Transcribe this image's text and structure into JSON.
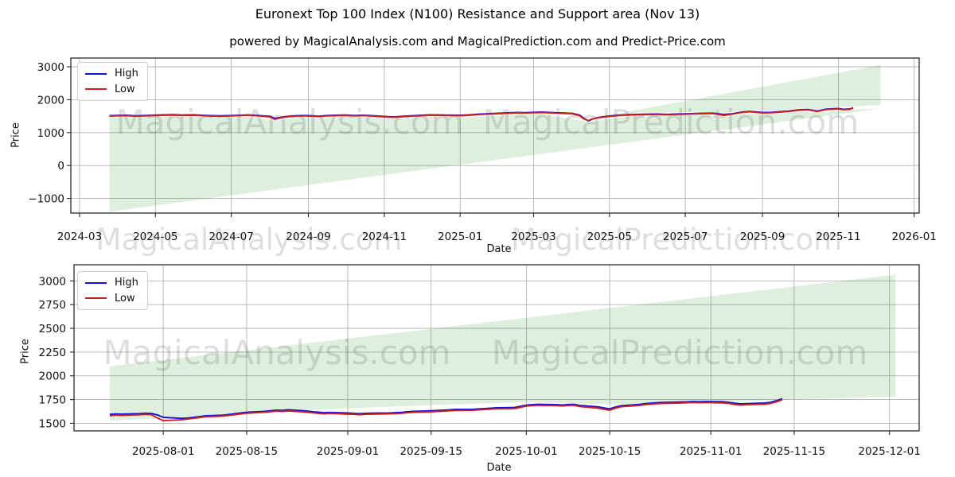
{
  "figure": {
    "title": "Euronext Top 100 Index (N100) Resistance and Support area (Nov 13)",
    "subtitle": "powered by MagicalAnalysis.com and MagicalPrediction.com and Predict-Price.com"
  },
  "watermarks": {
    "analysis": "MagicalAnalysis.com",
    "prediction": "MagicalPrediction.com"
  },
  "legend": {
    "items": [
      {
        "label": "High",
        "color_key": "high"
      },
      {
        "label": "Low",
        "color_key": "low"
      }
    ],
    "position": "upper left"
  },
  "colors": {
    "high": "#1212cf",
    "low": "#cc2020",
    "band": "rgba(0,128,0,0.13)",
    "watermark": "rgba(90,90,90,0.20)",
    "grid": "#b3b3b3",
    "spine": "#2a2a2a",
    "tick_text": "#111111"
  },
  "chart_data": [
    {
      "type": "line",
      "xlabel": "Date",
      "ylabel": "Price",
      "grid": true,
      "legend_position": "upper left",
      "xlim": [
        "2024-02-23",
        "2026-01-05"
      ],
      "ylim": [
        -1444,
        3266
      ],
      "xticks": [
        {
          "label": "2024-03",
          "date": "2024-03-01"
        },
        {
          "label": "2024-05",
          "date": "2024-05-01"
        },
        {
          "label": "2024-07",
          "date": "2024-07-01"
        },
        {
          "label": "2024-09",
          "date": "2024-09-01"
        },
        {
          "label": "2024-11",
          "date": "2024-11-01"
        },
        {
          "label": "2025-01",
          "date": "2025-01-01"
        },
        {
          "label": "2025-03",
          "date": "2025-03-01"
        },
        {
          "label": "2025-05",
          "date": "2025-05-01"
        },
        {
          "label": "2025-07",
          "date": "2025-07-01"
        },
        {
          "label": "2025-09",
          "date": "2025-09-01"
        },
        {
          "label": "2025-11",
          "date": "2025-11-01"
        },
        {
          "label": "2026-01",
          "date": "2026-01-01"
        }
      ],
      "yticks": [
        {
          "label": "3000",
          "value": 3000
        },
        {
          "label": "2000",
          "value": 2000
        },
        {
          "label": "1000",
          "value": 1000
        },
        {
          "label": "0",
          "value": 0
        },
        {
          "label": "−1000",
          "value": -1000
        }
      ],
      "watermarks_in_plot": [
        "analysis",
        "prediction"
      ],
      "watermarks_below_axis": [
        "analysis",
        "prediction"
      ],
      "bands": [
        [
          [
            "2024-03-25",
            -1400
          ],
          [
            "2024-03-25",
            1455
          ],
          [
            "2024-05-15",
            1490
          ],
          [
            "2024-06-22",
            1452
          ],
          [
            "2024-07-15",
            1478
          ],
          [
            "2024-08-05",
            1360
          ],
          [
            "2024-08-26",
            1462
          ],
          [
            "2024-09-09",
            1440
          ],
          [
            "2024-10-01",
            1476
          ],
          [
            "2024-11-08",
            1420
          ],
          [
            "2024-12-08",
            1485
          ],
          [
            "2025-01-02",
            1470
          ],
          [
            "2025-03-08",
            1568
          ],
          [
            "2025-04-14",
            1322
          ],
          [
            "2025-05-15",
            1488
          ],
          [
            "2025-07-15",
            1532
          ],
          [
            "2025-08-01",
            1482
          ],
          [
            "2025-08-22",
            1590
          ],
          [
            "2025-09-08",
            1558
          ],
          [
            "2025-10-01",
            1640
          ],
          [
            "2025-10-15",
            1596
          ],
          [
            "2025-11-01",
            1675
          ],
          [
            "2025-11-13",
            1702
          ],
          [
            "2025-12-05",
            1730
          ]
        ],
        [
          [
            "2025-04-18",
            1445
          ],
          [
            "2025-05-15",
            1588
          ],
          [
            "2025-07-15",
            1630
          ],
          [
            "2025-08-01",
            1598
          ],
          [
            "2025-08-22",
            1690
          ],
          [
            "2025-09-08",
            1660
          ],
          [
            "2025-10-01",
            1738
          ],
          [
            "2025-10-15",
            1700
          ],
          [
            "2025-11-01",
            1775
          ],
          [
            "2025-11-13",
            1802
          ],
          [
            "2025-12-05",
            1835
          ],
          [
            "2025-12-05",
            3055
          ]
        ]
      ],
      "series": {
        "dates": [
          "2024-03-25",
          "2024-04-01",
          "2024-04-08",
          "2024-04-15",
          "2024-04-22",
          "2024-05-01",
          "2024-05-08",
          "2024-05-15",
          "2024-05-22",
          "2024-06-01",
          "2024-06-08",
          "2024-06-15",
          "2024-06-22",
          "2024-07-01",
          "2024-07-08",
          "2024-07-15",
          "2024-07-22",
          "2024-08-01",
          "2024-08-05",
          "2024-08-12",
          "2024-08-19",
          "2024-08-26",
          "2024-09-02",
          "2024-09-09",
          "2024-09-16",
          "2024-09-23",
          "2024-10-01",
          "2024-10-08",
          "2024-10-15",
          "2024-10-22",
          "2024-11-01",
          "2024-11-08",
          "2024-11-15",
          "2024-11-22",
          "2024-12-01",
          "2024-12-08",
          "2024-12-15",
          "2024-12-22",
          "2025-01-02",
          "2025-01-09",
          "2025-01-16",
          "2025-01-23",
          "2025-02-01",
          "2025-02-08",
          "2025-02-15",
          "2025-02-22",
          "2025-03-01",
          "2025-03-08",
          "2025-03-15",
          "2025-03-22",
          "2025-04-01",
          "2025-04-07",
          "2025-04-10",
          "2025-04-14",
          "2025-04-17",
          "2025-04-22",
          "2025-05-01",
          "2025-05-08",
          "2025-05-15",
          "2025-05-22",
          "2025-06-02",
          "2025-06-09",
          "2025-06-16",
          "2025-06-23",
          "2025-07-01",
          "2025-07-08",
          "2025-07-15",
          "2025-07-23",
          "2025-08-01",
          "2025-08-08",
          "2025-08-15",
          "2025-08-22",
          "2025-09-01",
          "2025-09-08",
          "2025-09-15",
          "2025-09-22",
          "2025-10-01",
          "2025-10-08",
          "2025-10-15",
          "2025-10-22",
          "2025-11-01",
          "2025-11-05",
          "2025-11-10",
          "2025-11-13"
        ],
        "high": [
          1514,
          1522,
          1527,
          1510,
          1520,
          1532,
          1540,
          1547,
          1534,
          1540,
          1524,
          1514,
          1510,
          1520,
          1530,
          1536,
          1522,
          1495,
          1432,
          1478,
          1507,
          1520,
          1514,
          1497,
          1520,
          1527,
          1534,
          1520,
          1530,
          1517,
          1490,
          1477,
          1492,
          1510,
          1527,
          1542,
          1536,
          1532,
          1527,
          1542,
          1560,
          1572,
          1587,
          1600,
          1612,
          1607,
          1617,
          1624,
          1610,
          1600,
          1586,
          1533,
          1448,
          1355,
          1405,
          1462,
          1504,
          1530,
          1544,
          1554,
          1560,
          1564,
          1556,
          1562,
          1570,
          1580,
          1588,
          1592,
          1552,
          1572,
          1624,
          1646,
          1612,
          1616,
          1636,
          1654,
          1696,
          1702,
          1655,
          1714,
          1732,
          1710,
          1718,
          1760
        ],
        "low": [
          1502,
          1510,
          1515,
          1498,
          1508,
          1520,
          1528,
          1535,
          1522,
          1528,
          1512,
          1502,
          1498,
          1508,
          1518,
          1524,
          1510,
          1478,
          1405,
          1465,
          1495,
          1508,
          1502,
          1485,
          1508,
          1515,
          1522,
          1508,
          1518,
          1505,
          1478,
          1465,
          1480,
          1498,
          1515,
          1530,
          1524,
          1520,
          1515,
          1530,
          1548,
          1560,
          1575,
          1588,
          1600,
          1595,
          1605,
          1612,
          1598,
          1588,
          1572,
          1515,
          1425,
          1368,
          1412,
          1452,
          1492,
          1518,
          1532,
          1542,
          1548,
          1552,
          1544,
          1550,
          1558,
          1568,
          1576,
          1580,
          1528,
          1560,
          1612,
          1634,
          1600,
          1604,
          1624,
          1642,
          1684,
          1690,
          1640,
          1702,
          1720,
          1698,
          1706,
          1748
        ]
      }
    },
    {
      "type": "line",
      "xlabel": "Date",
      "ylabel": "Price",
      "grid": true,
      "legend_position": "upper left",
      "xlim": [
        "2025-07-17",
        "2025-12-06"
      ],
      "ylim": [
        1420,
        3170
      ],
      "xticks": [
        {
          "label": "2025-08-01",
          "date": "2025-08-01"
        },
        {
          "label": "2025-08-15",
          "date": "2025-08-15"
        },
        {
          "label": "2025-09-01",
          "date": "2025-09-01"
        },
        {
          "label": "2025-09-15",
          "date": "2025-09-15"
        },
        {
          "label": "2025-10-01",
          "date": "2025-10-01"
        },
        {
          "label": "2025-10-15",
          "date": "2025-10-15"
        },
        {
          "label": "2025-11-01",
          "date": "2025-11-01"
        },
        {
          "label": "2025-11-15",
          "date": "2025-11-15"
        },
        {
          "label": "2025-12-01",
          "date": "2025-12-01"
        }
      ],
      "yticks": [
        {
          "label": "3000",
          "value": 3000
        },
        {
          "label": "2750",
          "value": 2750
        },
        {
          "label": "2500",
          "value": 2500
        },
        {
          "label": "2250",
          "value": 2250
        },
        {
          "label": "2000",
          "value": 2000
        },
        {
          "label": "1750",
          "value": 1750
        },
        {
          "label": "1500",
          "value": 1500
        }
      ],
      "watermarks_in_plot": [
        "analysis",
        "prediction"
      ],
      "watermarks_below_axis": [],
      "bands": [
        [
          [
            "2025-07-23",
            2100
          ],
          [
            "2025-12-02",
            3065
          ],
          [
            "2025-12-02",
            1782
          ],
          [
            "2025-11-13",
            1748
          ],
          [
            "2025-11-01",
            1724
          ],
          [
            "2025-10-15",
            1700
          ],
          [
            "2025-10-01",
            1724
          ],
          [
            "2025-09-15",
            1690
          ],
          [
            "2025-09-01",
            1658
          ],
          [
            "2025-08-15",
            1614
          ],
          [
            "2025-08-01",
            1556
          ],
          [
            "2025-07-23",
            1528
          ]
        ]
      ],
      "series": {
        "dates": [
          "2025-07-23",
          "2025-07-24",
          "2025-07-25",
          "2025-07-28",
          "2025-07-29",
          "2025-07-30",
          "2025-07-31",
          "2025-08-01",
          "2025-08-04",
          "2025-08-05",
          "2025-08-06",
          "2025-08-07",
          "2025-08-08",
          "2025-08-11",
          "2025-08-12",
          "2025-08-13",
          "2025-08-14",
          "2025-08-15",
          "2025-08-18",
          "2025-08-19",
          "2025-08-20",
          "2025-08-21",
          "2025-08-22",
          "2025-08-25",
          "2025-08-26",
          "2025-08-27",
          "2025-08-28",
          "2025-08-29",
          "2025-09-01",
          "2025-09-02",
          "2025-09-03",
          "2025-09-04",
          "2025-09-05",
          "2025-09-08",
          "2025-09-09",
          "2025-09-10",
          "2025-09-11",
          "2025-09-12",
          "2025-09-15",
          "2025-09-16",
          "2025-09-17",
          "2025-09-18",
          "2025-09-19",
          "2025-09-22",
          "2025-09-23",
          "2025-09-24",
          "2025-09-25",
          "2025-09-26",
          "2025-09-29",
          "2025-09-30",
          "2025-10-01",
          "2025-10-02",
          "2025-10-03",
          "2025-10-06",
          "2025-10-07",
          "2025-10-08",
          "2025-10-09",
          "2025-10-10",
          "2025-10-13",
          "2025-10-14",
          "2025-10-15",
          "2025-10-16",
          "2025-10-17",
          "2025-10-20",
          "2025-10-21",
          "2025-10-22",
          "2025-10-23",
          "2025-10-24",
          "2025-10-27",
          "2025-10-28",
          "2025-10-29",
          "2025-10-30",
          "2025-10-31",
          "2025-11-03",
          "2025-11-04",
          "2025-11-05",
          "2025-11-06",
          "2025-11-07",
          "2025-11-10",
          "2025-11-11",
          "2025-11-12",
          "2025-11-13"
        ],
        "high": [
          1594,
          1598,
          1596,
          1602,
          1606,
          1603,
          1588,
          1562,
          1552,
          1556,
          1562,
          1570,
          1578,
          1586,
          1593,
          1600,
          1608,
          1616,
          1626,
          1632,
          1638,
          1636,
          1642,
          1630,
          1623,
          1617,
          1612,
          1614,
          1608,
          1604,
          1602,
          1604,
          1607,
          1609,
          1612,
          1615,
          1622,
          1625,
          1632,
          1635,
          1638,
          1641,
          1646,
          1648,
          1652,
          1655,
          1659,
          1663,
          1666,
          1679,
          1691,
          1697,
          1700,
          1696,
          1693,
          1698,
          1700,
          1689,
          1674,
          1662,
          1652,
          1672,
          1686,
          1699,
          1707,
          1712,
          1716,
          1720,
          1724,
          1726,
          1729,
          1727,
          1729,
          1727,
          1721,
          1711,
          1705,
          1707,
          1713,
          1721,
          1737,
          1759
        ],
        "low": [
          1580,
          1586,
          1583,
          1590,
          1594,
          1590,
          1556,
          1528,
          1536,
          1544,
          1552,
          1560,
          1568,
          1576,
          1583,
          1590,
          1598,
          1606,
          1616,
          1622,
          1628,
          1624,
          1630,
          1618,
          1611,
          1605,
          1600,
          1604,
          1597,
          1594,
          1590,
          1594,
          1597,
          1599,
          1602,
          1605,
          1611,
          1615,
          1621,
          1625,
          1627,
          1631,
          1635,
          1637,
          1641,
          1645,
          1649,
          1653,
          1655,
          1668,
          1681,
          1686,
          1690,
          1686,
          1682,
          1688,
          1690,
          1676,
          1660,
          1648,
          1638,
          1660,
          1675,
          1689,
          1697,
          1702,
          1706,
          1710,
          1714,
          1716,
          1719,
          1716,
          1719,
          1715,
          1710,
          1698,
          1692,
          1696,
          1701,
          1709,
          1726,
          1748
        ]
      }
    }
  ]
}
